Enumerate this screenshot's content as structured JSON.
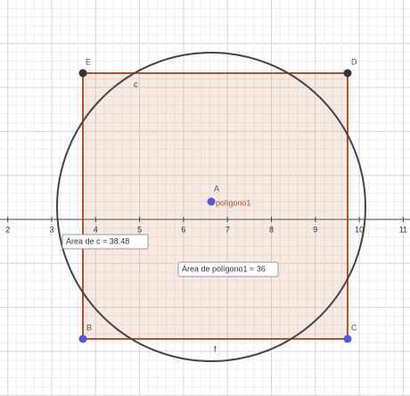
{
  "canvas": {
    "xticks": [
      2,
      3,
      4,
      5,
      6,
      7,
      8,
      9,
      10,
      11
    ],
    "points": {
      "E": "E",
      "D": "D",
      "B": "B",
      "C": "C",
      "A": "A"
    },
    "segment_labels": {
      "top": "c",
      "bottom": "f"
    },
    "polygon_label": "polígono1",
    "circle_area_label": "Área de c = 38.48",
    "polygon_area_label": "Área de polígono1 = 36"
  }
}
